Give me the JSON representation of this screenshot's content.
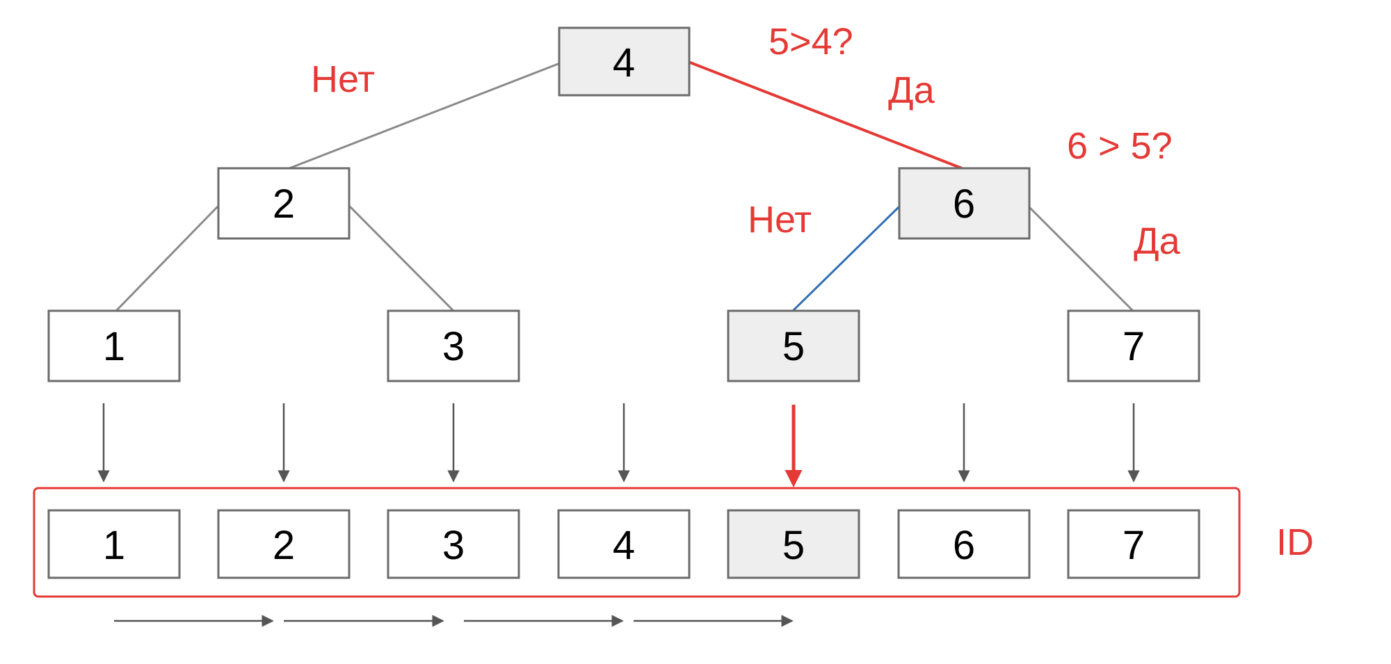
{
  "colors": {
    "accent_red": "#e53935",
    "line_gray": "#8a8a8a",
    "line_blue": "#2f6db5",
    "box_border": "#6b6b6b",
    "box_fill": "#ffffff",
    "box_fill_highlight": "#eeeeee",
    "arrow_gray": "#555555"
  },
  "tree": {
    "root": "4",
    "level2_left": "2",
    "level2_right": "6",
    "leaf_1": "1",
    "leaf_3": "3",
    "leaf_5": "5",
    "leaf_7": "7"
  },
  "annotations": {
    "root_left_answer": "Нет",
    "root_question": "5>4?",
    "root_right_answer": "Да",
    "node6_question": "6 > 5?",
    "node6_left_answer": "Нет",
    "node6_right_answer": "Да"
  },
  "id_array": {
    "label": "ID",
    "cells": [
      "1",
      "2",
      "3",
      "4",
      "5",
      "6",
      "7"
    ],
    "highlighted_value": "5"
  }
}
